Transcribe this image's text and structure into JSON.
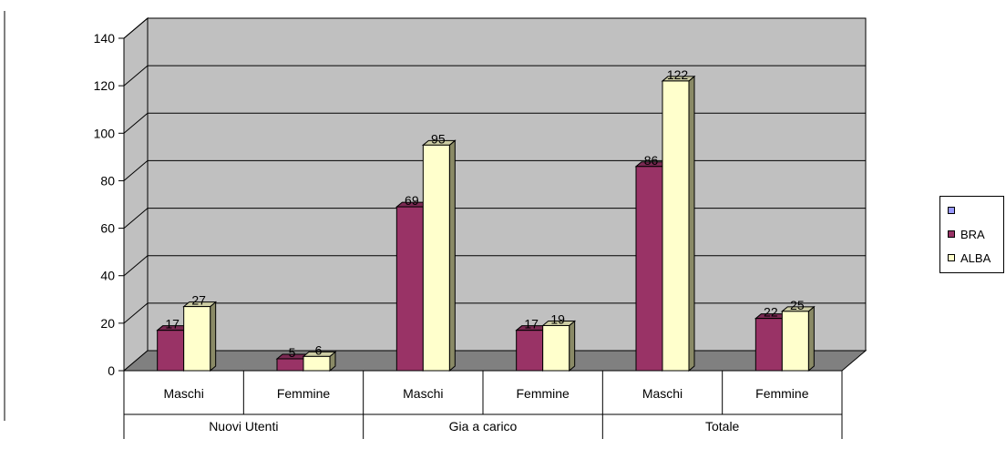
{
  "chart_data": {
    "type": "bar",
    "groups": [
      {
        "label": "Nuovi Utenti",
        "categories": [
          "Maschi",
          "Femmine"
        ]
      },
      {
        "label": "Gia a carico",
        "categories": [
          "Maschi",
          "Femmine"
        ]
      },
      {
        "label": "Totale",
        "categories": [
          "Maschi",
          "Femmine"
        ]
      }
    ],
    "categories": [
      "Maschi",
      "Femmine",
      "Maschi",
      "Femmine",
      "Maschi",
      "Femmine"
    ],
    "series": [
      {
        "name": "",
        "values": [
          null,
          null,
          null,
          null,
          null,
          null
        ],
        "color": "#9999ff"
      },
      {
        "name": "BRA",
        "values": [
          17,
          5,
          69,
          17,
          86,
          22
        ],
        "color": "#993366"
      },
      {
        "name": "ALBA",
        "values": [
          27,
          6,
          95,
          19,
          122,
          25
        ],
        "color": "#ffffcc"
      }
    ],
    "ylim": [
      0,
      140
    ],
    "yticks": [
      0,
      20,
      40,
      60,
      80,
      100,
      120,
      140
    ],
    "grid": true,
    "legend_position": "right",
    "data_labels": true,
    "style": "3d-clustered-column",
    "colors": {
      "wall": "#c0c0c0",
      "floor": "#808080",
      "bar_side_bra": "#5e1f3e",
      "bar_side_alba": "#8a8a66"
    }
  }
}
